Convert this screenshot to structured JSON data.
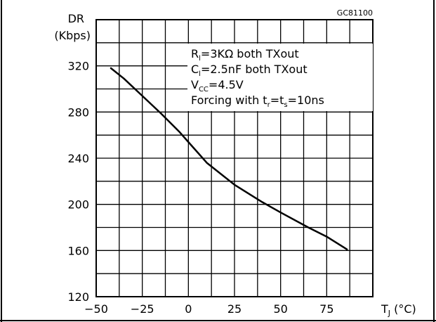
{
  "figure": {
    "code": "GC81100",
    "y_title": [
      "DR",
      "(Kbps)"
    ],
    "x_title": {
      "main": "T",
      "sub": "J",
      "unit": " (°C)"
    },
    "conditions": [
      {
        "sym": "R",
        "sub": "l",
        "text": "=3KΩ  both  TXout"
      },
      {
        "sym": "C",
        "sub": "l",
        "text": "=2.5nF  both  TXout"
      },
      {
        "sym": "V",
        "sub": "CC",
        "text": "=4.5V"
      },
      {
        "parts": [
          {
            "t": "Forcing  with  t"
          },
          {
            "t": "r",
            "sub": true
          },
          {
            "t": "=t"
          },
          {
            "t": "s",
            "sub": true
          },
          {
            "t": "=10ns"
          }
        ]
      }
    ]
  },
  "chart_data": {
    "type": "line",
    "title": "",
    "xlabel": "TJ (°C)",
    "ylabel": "DR (Kbps)",
    "xlim": [
      -50,
      100
    ],
    "ylim": [
      120,
      360
    ],
    "x_ticks": [
      "-50",
      "-25",
      "0",
      "25",
      "50",
      "75"
    ],
    "y_ticks": [
      "120",
      "160",
      "200",
      "240",
      "280",
      "320"
    ],
    "grid": true,
    "series": [
      {
        "x": [
          -42,
          -35,
          -25,
          -15,
          -5,
          0,
          10,
          25,
          40,
          50,
          65,
          75,
          86
        ],
        "y": [
          318,
          309,
          294,
          279,
          263,
          254,
          236,
          217,
          202,
          193,
          180,
          172,
          161
        ]
      }
    ]
  }
}
